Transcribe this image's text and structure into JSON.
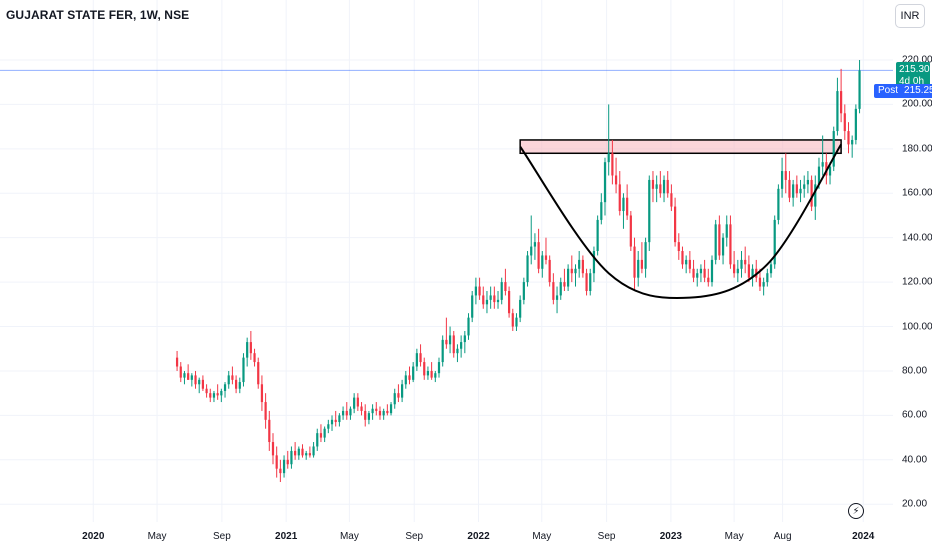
{
  "header": {
    "title": "GUJARAT STATE FER, 1W, NSE"
  },
  "currency": "INR",
  "price_tag": {
    "price": "215.30",
    "countdown": "4d 0h"
  },
  "post_tag": {
    "label": "Post",
    "price": "215.25"
  },
  "colors": {
    "up": "#089981",
    "down": "#f23645",
    "zone_fill": "#f7b3bb",
    "last_line": "#2962ff",
    "axis_text": "#131722"
  },
  "icons": {
    "flash": "lightning-icon"
  },
  "chart_data": {
    "type": "candlestick",
    "title": "GUJARAT STATE FER, 1W, NSE",
    "y_ticks": [
      "220.00",
      "200.00",
      "180.00",
      "160.00",
      "140.00",
      "120.00",
      "100.00",
      "80.00",
      "60.00",
      "40.00",
      "20.00"
    ],
    "y_range": [
      12,
      229
    ],
    "x_ticks": [
      {
        "label": "2020",
        "bold": true,
        "date": "2020-01-01"
      },
      {
        "label": "May",
        "bold": false,
        "date": "2020-05-01"
      },
      {
        "label": "Sep",
        "bold": false,
        "date": "2020-09-01"
      },
      {
        "label": "2021",
        "bold": true,
        "date": "2021-01-01"
      },
      {
        "label": "May",
        "bold": false,
        "date": "2021-05-01"
      },
      {
        "label": "Sep",
        "bold": false,
        "date": "2021-09-01"
      },
      {
        "label": "2022",
        "bold": true,
        "date": "2022-01-01"
      },
      {
        "label": "May",
        "bold": false,
        "date": "2022-05-01"
      },
      {
        "label": "Sep",
        "bold": false,
        "date": "2022-09-01"
      },
      {
        "label": "2023",
        "bold": true,
        "date": "2023-01-01"
      },
      {
        "label": "May",
        "bold": false,
        "date": "2023-05-01"
      },
      {
        "label": "Aug",
        "bold": false,
        "date": "2023-08-01"
      },
      {
        "label": "2024",
        "bold": true,
        "date": "2024-01-01"
      }
    ],
    "x_range": [
      "2019-07-08",
      "2024-01-29"
    ],
    "last_price": 215.3,
    "resistance_zone": {
      "start": "2022-03-21",
      "end": "2023-11-20",
      "low": 178,
      "high": 184
    },
    "cup_curve": [
      {
        "date": "2022-03-21",
        "price": 181
      },
      {
        "date": "2022-09-05",
        "price": 124
      },
      {
        "date": "2023-02-06",
        "price": 113
      },
      {
        "date": "2023-07-03",
        "price": 128
      },
      {
        "date": "2023-11-20",
        "price": 182
      }
    ],
    "series": [
      {
        "values": [
          [
            86,
            89,
            80,
            82
          ],
          [
            82,
            84,
            75,
            77
          ],
          [
            77,
            80,
            74,
            79
          ],
          [
            79,
            83,
            76,
            76
          ],
          [
            76,
            79,
            73,
            78
          ],
          [
            78,
            80,
            72,
            74
          ],
          [
            74,
            77,
            70,
            76
          ],
          [
            76,
            78,
            71,
            72
          ],
          [
            72,
            74,
            68,
            70
          ],
          [
            70,
            72,
            66,
            68
          ],
          [
            68,
            71,
            66,
            70
          ],
          [
            70,
            74,
            67,
            69
          ],
          [
            69,
            72,
            66,
            71
          ],
          [
            71,
            75,
            68,
            74
          ],
          [
            74,
            80,
            72,
            78
          ],
          [
            78,
            82,
            74,
            76
          ],
          [
            76,
            78,
            70,
            72
          ],
          [
            72,
            77,
            70,
            75
          ],
          [
            75,
            88,
            73,
            86
          ],
          [
            86,
            95,
            82,
            93
          ],
          [
            93,
            98,
            85,
            88
          ],
          [
            88,
            90,
            82,
            84
          ],
          [
            84,
            86,
            72,
            74
          ],
          [
            74,
            78,
            62,
            66
          ],
          [
            66,
            70,
            54,
            58
          ],
          [
            58,
            62,
            44,
            48
          ],
          [
            48,
            52,
            38,
            42
          ],
          [
            42,
            46,
            32,
            36
          ],
          [
            36,
            40,
            30,
            34
          ],
          [
            34,
            42,
            32,
            40
          ],
          [
            40,
            44,
            36,
            38
          ],
          [
            38,
            46,
            36,
            44
          ],
          [
            44,
            48,
            40,
            42
          ],
          [
            42,
            46,
            40,
            45
          ],
          [
            45,
            47,
            41,
            42
          ],
          [
            42,
            44,
            40,
            43
          ],
          [
            43,
            46,
            41,
            42
          ],
          [
            42,
            48,
            41,
            46
          ],
          [
            46,
            54,
            44,
            52
          ],
          [
            52,
            56,
            48,
            50
          ],
          [
            50,
            55,
            48,
            54
          ],
          [
            54,
            58,
            52,
            56
          ],
          [
            56,
            60,
            53,
            58
          ],
          [
            58,
            62,
            55,
            57
          ],
          [
            57,
            61,
            55,
            60
          ],
          [
            60,
            64,
            58,
            62
          ],
          [
            62,
            66,
            58,
            60
          ],
          [
            60,
            64,
            58,
            63
          ],
          [
            63,
            70,
            61,
            68
          ],
          [
            68,
            70,
            62,
            64
          ],
          [
            64,
            66,
            60,
            62
          ],
          [
            62,
            65,
            55,
            58
          ],
          [
            58,
            62,
            56,
            61
          ],
          [
            61,
            65,
            58,
            63
          ],
          [
            63,
            66,
            60,
            62
          ],
          [
            62,
            64,
            58,
            60
          ],
          [
            60,
            63,
            58,
            62
          ],
          [
            62,
            65,
            60,
            61
          ],
          [
            61,
            66,
            60,
            65
          ],
          [
            65,
            72,
            63,
            70
          ],
          [
            70,
            74,
            66,
            68
          ],
          [
            68,
            76,
            66,
            74
          ],
          [
            74,
            80,
            72,
            78
          ],
          [
            78,
            82,
            74,
            76
          ],
          [
            76,
            84,
            75,
            82
          ],
          [
            82,
            90,
            80,
            88
          ],
          [
            88,
            92,
            82,
            84
          ],
          [
            84,
            86,
            76,
            78
          ],
          [
            78,
            82,
            76,
            80
          ],
          [
            80,
            84,
            76,
            77
          ],
          [
            77,
            80,
            75,
            79
          ],
          [
            79,
            86,
            77,
            84
          ],
          [
            84,
            96,
            82,
            94
          ],
          [
            94,
            104,
            90,
            92
          ],
          [
            92,
            100,
            88,
            96
          ],
          [
            96,
            98,
            86,
            88
          ],
          [
            88,
            92,
            84,
            90
          ],
          [
            90,
            96,
            86,
            93
          ],
          [
            93,
            98,
            88,
            96
          ],
          [
            96,
            106,
            94,
            104
          ],
          [
            104,
            116,
            102,
            114
          ],
          [
            114,
            122,
            110,
            118
          ],
          [
            118,
            122,
            112,
            114
          ],
          [
            114,
            118,
            108,
            110
          ],
          [
            110,
            116,
            106,
            112
          ],
          [
            112,
            118,
            108,
            114
          ],
          [
            114,
            118,
            108,
            111
          ],
          [
            111,
            116,
            108,
            112
          ],
          [
            112,
            122,
            110,
            120
          ],
          [
            120,
            126,
            114,
            116
          ],
          [
            116,
            118,
            104,
            106
          ],
          [
            106,
            108,
            98,
            100
          ],
          [
            100,
            106,
            98,
            104
          ],
          [
            104,
            114,
            102,
            112
          ],
          [
            112,
            122,
            110,
            120
          ],
          [
            120,
            134,
            118,
            132
          ],
          [
            132,
            150,
            128,
            136
          ],
          [
            136,
            142,
            130,
            138
          ],
          [
            138,
            144,
            124,
            126
          ],
          [
            126,
            134,
            122,
            132
          ],
          [
            132,
            140,
            128,
            130
          ],
          [
            130,
            132,
            118,
            120
          ],
          [
            120,
            124,
            110,
            112
          ],
          [
            112,
            118,
            106,
            114
          ],
          [
            114,
            122,
            112,
            120
          ],
          [
            120,
            126,
            116,
            118
          ],
          [
            118,
            128,
            116,
            126
          ],
          [
            126,
            132,
            120,
            124
          ],
          [
            124,
            128,
            118,
            126
          ],
          [
            126,
            134,
            122,
            130
          ],
          [
            130,
            132,
            122,
            124
          ],
          [
            124,
            126,
            114,
            116
          ],
          [
            116,
            126,
            114,
            124
          ],
          [
            124,
            136,
            120,
            134
          ],
          [
            134,
            150,
            132,
            148
          ],
          [
            148,
            160,
            146,
            156
          ],
          [
            156,
            176,
            150,
            174
          ],
          [
            174,
            200,
            168,
            178
          ],
          [
            178,
            184,
            164,
            168
          ],
          [
            168,
            176,
            160,
            164
          ],
          [
            164,
            170,
            150,
            152
          ],
          [
            152,
            160,
            144,
            158
          ],
          [
            158,
            164,
            148,
            150
          ],
          [
            150,
            152,
            134,
            136
          ],
          [
            136,
            140,
            116,
            122
          ],
          [
            122,
            134,
            118,
            130
          ],
          [
            130,
            138,
            124,
            126
          ],
          [
            126,
            140,
            122,
            138
          ],
          [
            138,
            168,
            134,
            166
          ],
          [
            166,
            170,
            156,
            162
          ],
          [
            162,
            168,
            156,
            164
          ],
          [
            164,
            170,
            158,
            160
          ],
          [
            160,
            168,
            156,
            166
          ],
          [
            166,
            170,
            158,
            160
          ],
          [
            160,
            164,
            152,
            154
          ],
          [
            154,
            158,
            136,
            138
          ],
          [
            138,
            142,
            130,
            134
          ],
          [
            134,
            136,
            126,
            128
          ],
          [
            128,
            132,
            124,
            130
          ],
          [
            130,
            134,
            124,
            126
          ],
          [
            126,
            130,
            120,
            122
          ],
          [
            122,
            126,
            118,
            124
          ],
          [
            124,
            128,
            120,
            126
          ],
          [
            126,
            130,
            120,
            122
          ],
          [
            122,
            126,
            118,
            120
          ],
          [
            120,
            132,
            118,
            130
          ],
          [
            130,
            148,
            128,
            146
          ],
          [
            146,
            150,
            130,
            132
          ],
          [
            132,
            142,
            128,
            140
          ],
          [
            140,
            150,
            136,
            146
          ],
          [
            146,
            150,
            126,
            128
          ],
          [
            128,
            134,
            122,
            124
          ],
          [
            124,
            130,
            120,
            126
          ],
          [
            126,
            134,
            122,
            130
          ],
          [
            130,
            136,
            124,
            128
          ],
          [
            128,
            132,
            120,
            122
          ],
          [
            122,
            128,
            118,
            126
          ],
          [
            126,
            130,
            120,
            122
          ],
          [
            122,
            126,
            116,
            118
          ],
          [
            118,
            122,
            114,
            120
          ],
          [
            120,
            126,
            118,
            124
          ],
          [
            124,
            130,
            122,
            128
          ],
          [
            128,
            150,
            126,
            148
          ],
          [
            148,
            164,
            146,
            162
          ],
          [
            162,
            176,
            158,
            170
          ],
          [
            170,
            178,
            160,
            166
          ],
          [
            166,
            170,
            156,
            158
          ],
          [
            158,
            166,
            154,
            164
          ],
          [
            164,
            168,
            158,
            160
          ],
          [
            160,
            166,
            156,
            162
          ],
          [
            162,
            168,
            158,
            164
          ],
          [
            164,
            170,
            160,
            166
          ],
          [
            166,
            168,
            152,
            154
          ],
          [
            154,
            168,
            148,
            164
          ],
          [
            164,
            176,
            162,
            172
          ],
          [
            172,
            186,
            168,
            174
          ],
          [
            174,
            178,
            164,
            168
          ],
          [
            168,
            174,
            164,
            172
          ],
          [
            172,
            190,
            170,
            188
          ],
          [
            188,
            212,
            186,
            206
          ],
          [
            206,
            216,
            192,
            196
          ],
          [
            196,
            200,
            184,
            188
          ],
          [
            188,
            192,
            178,
            182
          ],
          [
            182,
            186,
            176,
            184
          ],
          [
            184,
            200,
            182,
            198
          ],
          [
            198,
            220,
            196,
            215.3
          ]
        ]
      }
    ]
  }
}
